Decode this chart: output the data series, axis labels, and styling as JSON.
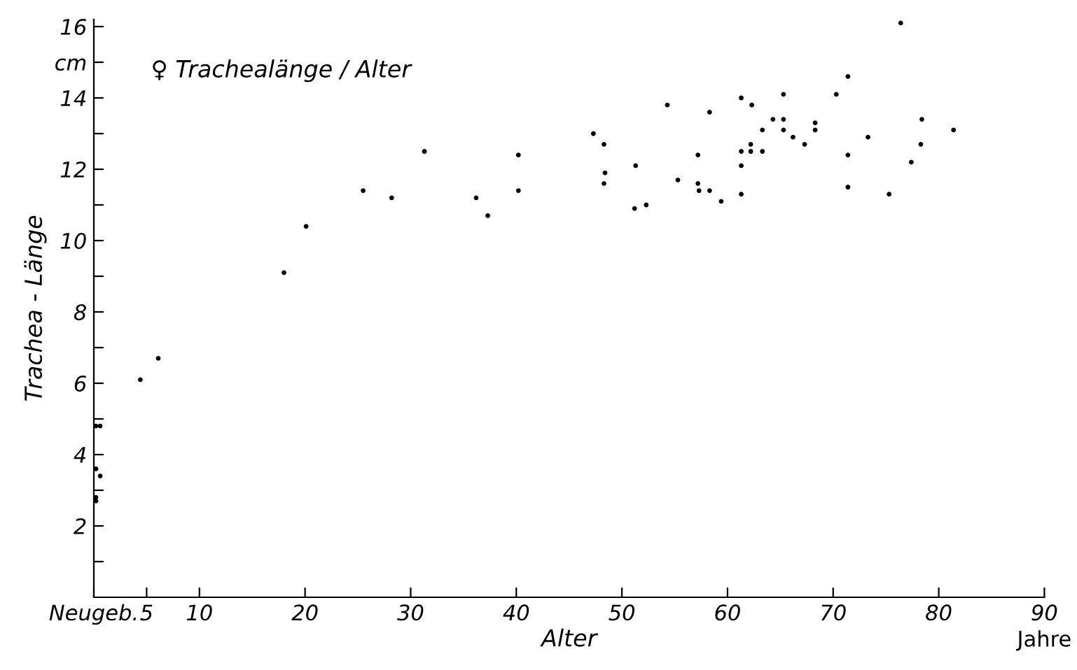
{
  "chart_data": {
    "type": "scatter",
    "title": "♀ Trachealänge / Alter",
    "xlabel": "Alter",
    "ylabel": "Trachea - Länge",
    "annotations": [
      "Jahre"
    ],
    "x": [
      0.2,
      0.6,
      0.2,
      0.6,
      0.2,
      0.2,
      4.4,
      6.1,
      18.0,
      20.1,
      25.5,
      28.2,
      31.3,
      36.2,
      37.3,
      40.2,
      40.2,
      47.3,
      48.3,
      48.4,
      48.3,
      51.3,
      51.2,
      52.3,
      54.3,
      55.3,
      58.3,
      57.2,
      57.2,
      57.3,
      58.3,
      59.4,
      61.3,
      62.3,
      61.3,
      61.3,
      61.3,
      62.2,
      62.2,
      63.3,
      63.3,
      64.3,
      65.3,
      65.3,
      65.3,
      66.2,
      67.3,
      68.3,
      68.3,
      70.3,
      71.4,
      71.4,
      71.4,
      73.3,
      75.3,
      76.4,
      77.4,
      78.4,
      78.3,
      81.4
    ],
    "values": [
      4.8,
      4.8,
      3.6,
      3.4,
      2.8,
      2.7,
      6.1,
      6.7,
      9.1,
      10.4,
      11.4,
      11.2,
      12.5,
      11.2,
      10.7,
      12.4,
      11.4,
      13.0,
      12.7,
      11.9,
      11.6,
      12.1,
      10.9,
      11.0,
      13.8,
      11.7,
      13.6,
      12.4,
      11.6,
      11.4,
      11.4,
      11.1,
      14.0,
      13.8,
      12.5,
      12.1,
      11.3,
      12.7,
      12.5,
      13.1,
      12.5,
      13.4,
      14.1,
      13.4,
      13.1,
      12.9,
      12.7,
      13.3,
      13.1,
      14.1,
      14.6,
      12.4,
      11.5,
      12.9,
      11.3,
      16.1,
      12.2,
      13.4,
      12.7,
      13.1
    ],
    "color": "#000000",
    "marker": "circle",
    "grid": false,
    "legend": false,
    "xlim": [
      0,
      90
    ],
    "ylim": [
      0,
      16.2
    ],
    "xticks": [
      {
        "value": 0,
        "label": "Neugeb."
      },
      5,
      10,
      20,
      30,
      40,
      50,
      60,
      70,
      80,
      90
    ],
    "yticks": [
      {
        "value": 1,
        "label": null
      },
      2,
      {
        "value": 3,
        "label": null
      },
      4,
      {
        "value": 5,
        "label": null
      },
      6,
      {
        "value": 7,
        "label": null
      },
      8,
      {
        "value": 9,
        "label": null
      },
      10,
      {
        "value": 11,
        "label": null
      },
      12,
      {
        "value": 13,
        "label": null
      },
      14,
      {
        "value": 15,
        "label": "cm"
      },
      16
    ]
  }
}
